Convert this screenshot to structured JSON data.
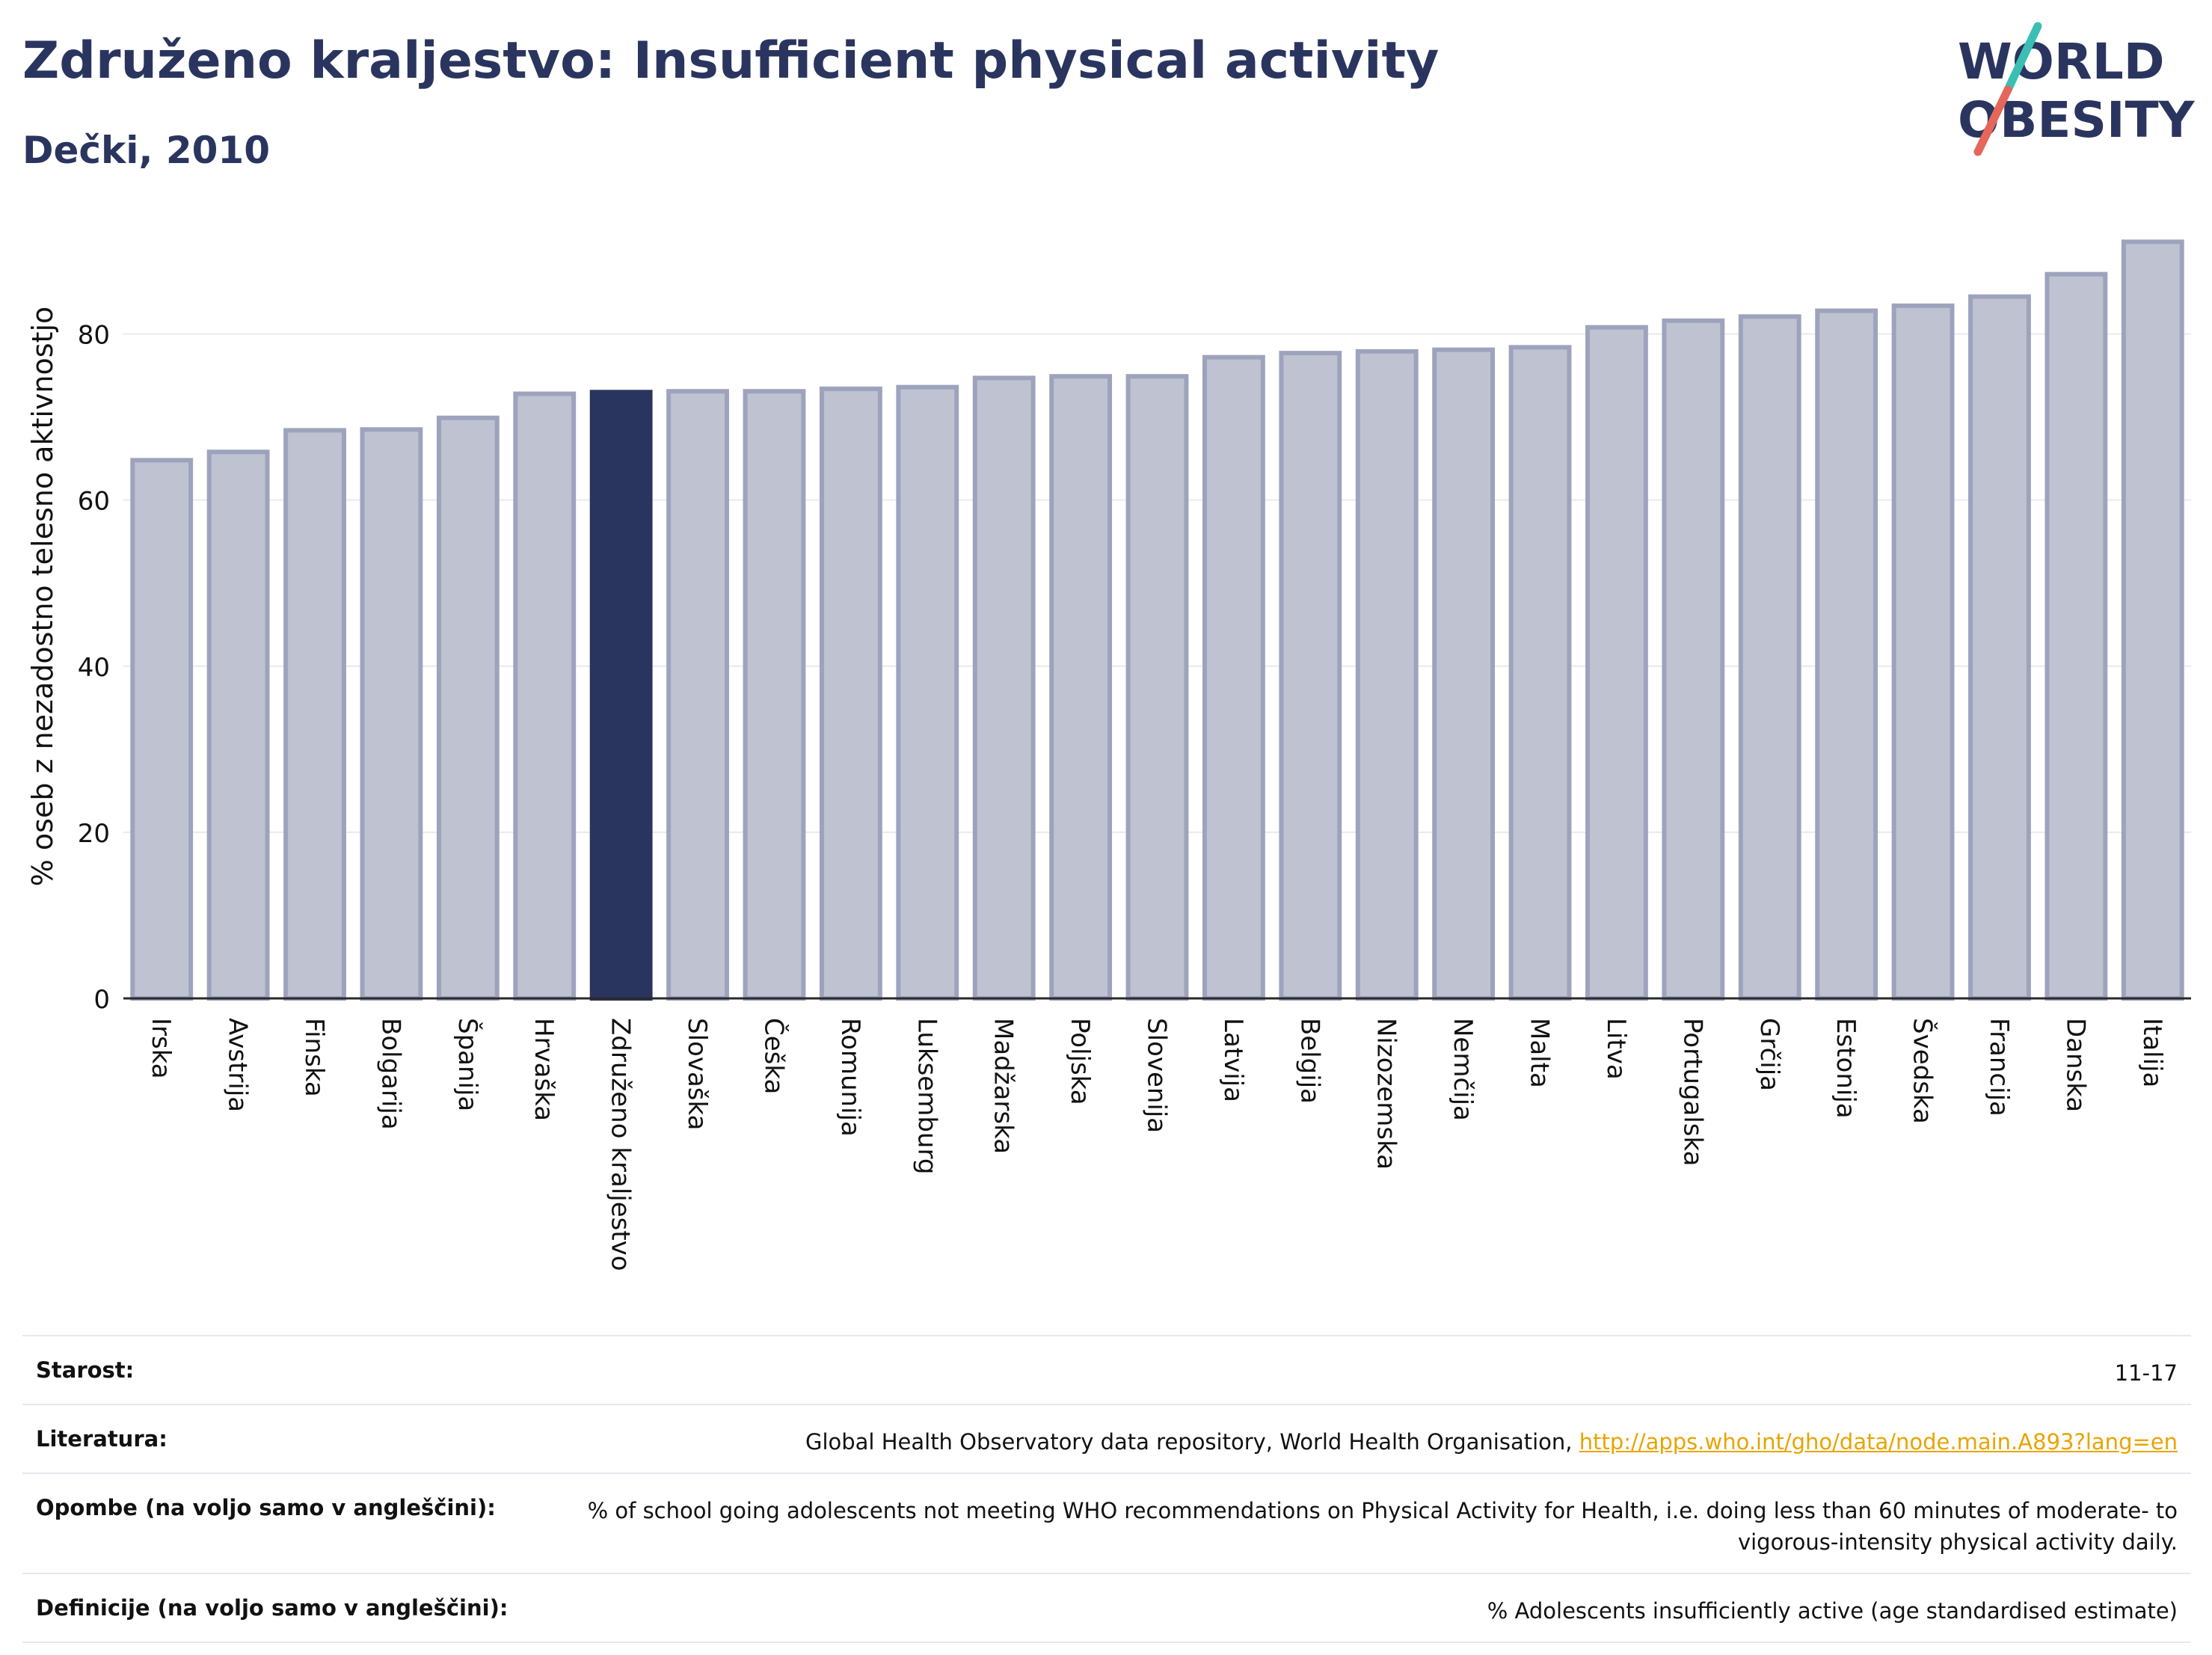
{
  "header": {
    "title": "Združeno kraljestvo: Insufficient physical activity",
    "subtitle": "Dečki, 2010"
  },
  "logo": {
    "line1": "WORLD",
    "line2": "OBESITY",
    "colors": {
      "text": "#2a355f",
      "slash_teal": "#3bbfb4",
      "slash_red": "#e5665a"
    }
  },
  "chart_data": {
    "type": "bar",
    "ylabel": "% oseb z nezadostno telesno aktivnostjo",
    "xlabel": "",
    "ylim": [
      0,
      95
    ],
    "yticks": [
      0,
      20,
      40,
      60,
      80
    ],
    "grid": true,
    "highlight": "Združeno kraljestvo",
    "colors": {
      "bar": "#bfc2d0",
      "bar_edge": "#9ea3bd",
      "highlight": "#2a355f"
    },
    "categories": [
      "Irska",
      "Avstrija",
      "Finska",
      "Bolgarija",
      "Španija",
      "Hrvaška",
      "Združeno kraljestvo",
      "Slovaška",
      "Češka",
      "Romunija",
      "Luksemburg",
      "Madžarska",
      "Poljska",
      "Slovenija",
      "Latvija",
      "Belgija",
      "Nizozemska",
      "Nemčija",
      "Malta",
      "Litva",
      "Portugalska",
      "Grčija",
      "Estonija",
      "Švedska",
      "Francija",
      "Danska",
      "Italija"
    ],
    "values": [
      64.8,
      65.8,
      68.4,
      68.5,
      69.9,
      72.8,
      73.0,
      73.1,
      73.1,
      73.4,
      73.6,
      74.7,
      74.9,
      74.9,
      77.2,
      77.7,
      77.9,
      78.1,
      78.4,
      80.8,
      81.6,
      82.1,
      82.8,
      83.4,
      84.5,
      87.2,
      91.1
    ]
  },
  "meta": {
    "rows": [
      {
        "key": "Starost:",
        "value": "11-17"
      },
      {
        "key": "Literatura:",
        "value": "Global Health Observatory data repository, World Health Organisation, ",
        "link": "http://apps.who.int/gho/data/node.main.A893?lang=en"
      },
      {
        "key": "Opombe (na voljo samo v angleščini):",
        "value": "% of school going adolescents not meeting WHO recommendations on Physical Activity for Health, i.e. doing less than 60 minutes of moderate- to vigorous-intensity physical activity daily."
      },
      {
        "key": "Definicije (na voljo samo v angleščini):",
        "value": "% Adolescents insufficiently active (age standardised estimate)"
      }
    ]
  }
}
